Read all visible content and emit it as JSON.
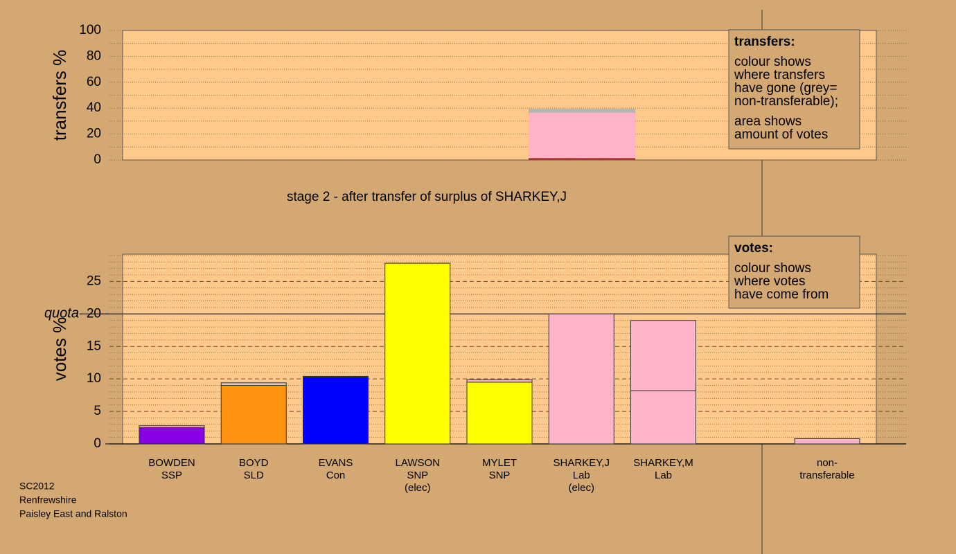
{
  "stage_title": "stage 2 - after transfer of surplus of SHARKEY,J",
  "footer": [
    "SC2012",
    "Renfrewshire",
    "Paisley East and Ralston"
  ],
  "chart_data": [
    {
      "type": "bar",
      "ylabel": "transfers %",
      "ylim": [
        0,
        100
      ],
      "yticks": [
        0,
        20,
        40,
        60,
        80,
        100
      ],
      "minor_yticks": [
        10,
        30,
        50,
        70,
        90
      ],
      "series": [
        {
          "color": "#a8323a",
          "values": [
            1.5
          ]
        },
        {
          "color": "#ffb3c6",
          "values": [
            35
          ]
        },
        {
          "color": "#b4b4b4",
          "values": [
            3
          ]
        }
      ],
      "key_title": "transfers:",
      "key_text": [
        [
          "colour shows",
          "where transfers",
          "have gone (grey=",
          "non-transferable);"
        ],
        [
          "area shows",
          "amount of votes"
        ]
      ]
    },
    {
      "type": "bar",
      "ylabel": "votes %",
      "ylim": [
        0,
        29.2
      ],
      "yticks": [
        0,
        5,
        10,
        15,
        20,
        25
      ],
      "minor_yticks": [
        1,
        2,
        3,
        4,
        6,
        7,
        8,
        9,
        11,
        12,
        13,
        14,
        16,
        17,
        18,
        19,
        21,
        22,
        23,
        24,
        26,
        27,
        28,
        29
      ],
      "quota": {
        "value": 20,
        "label": "quota"
      },
      "categories": [
        [
          "BOWDEN",
          "SSP"
        ],
        [
          "BOYD",
          "SLD"
        ],
        [
          "EVANS",
          "Con"
        ],
        [
          "LAWSON",
          "SNP",
          "(elec)"
        ],
        [
          "MYLET",
          "SNP"
        ],
        [
          "SHARKEY,J",
          "Lab",
          "(elec)"
        ],
        [
          "SHARKEY,M",
          "Lab"
        ],
        null,
        [
          "non-",
          "transferable"
        ]
      ],
      "series": [
        {
          "colors": [
            "#8a00e6",
            "#ff9410",
            "#0000ff",
            "#ffff00",
            "#ffff00",
            "#ffb3c6",
            "#ffb3c6",
            null,
            "#ffb3c6"
          ],
          "values": [
            2.5,
            9.0,
            10.3,
            27.8,
            9.5,
            20.0,
            8.2,
            null,
            0
          ]
        },
        {
          "color": "#ffb3c6",
          "values": [
            0.3,
            0.4,
            0.1,
            0,
            0.4,
            0,
            10.8,
            null,
            0.8
          ]
        }
      ],
      "key_title": "votes:",
      "key_text": [
        [
          "colour shows",
          "where votes",
          "have come from"
        ]
      ]
    }
  ]
}
